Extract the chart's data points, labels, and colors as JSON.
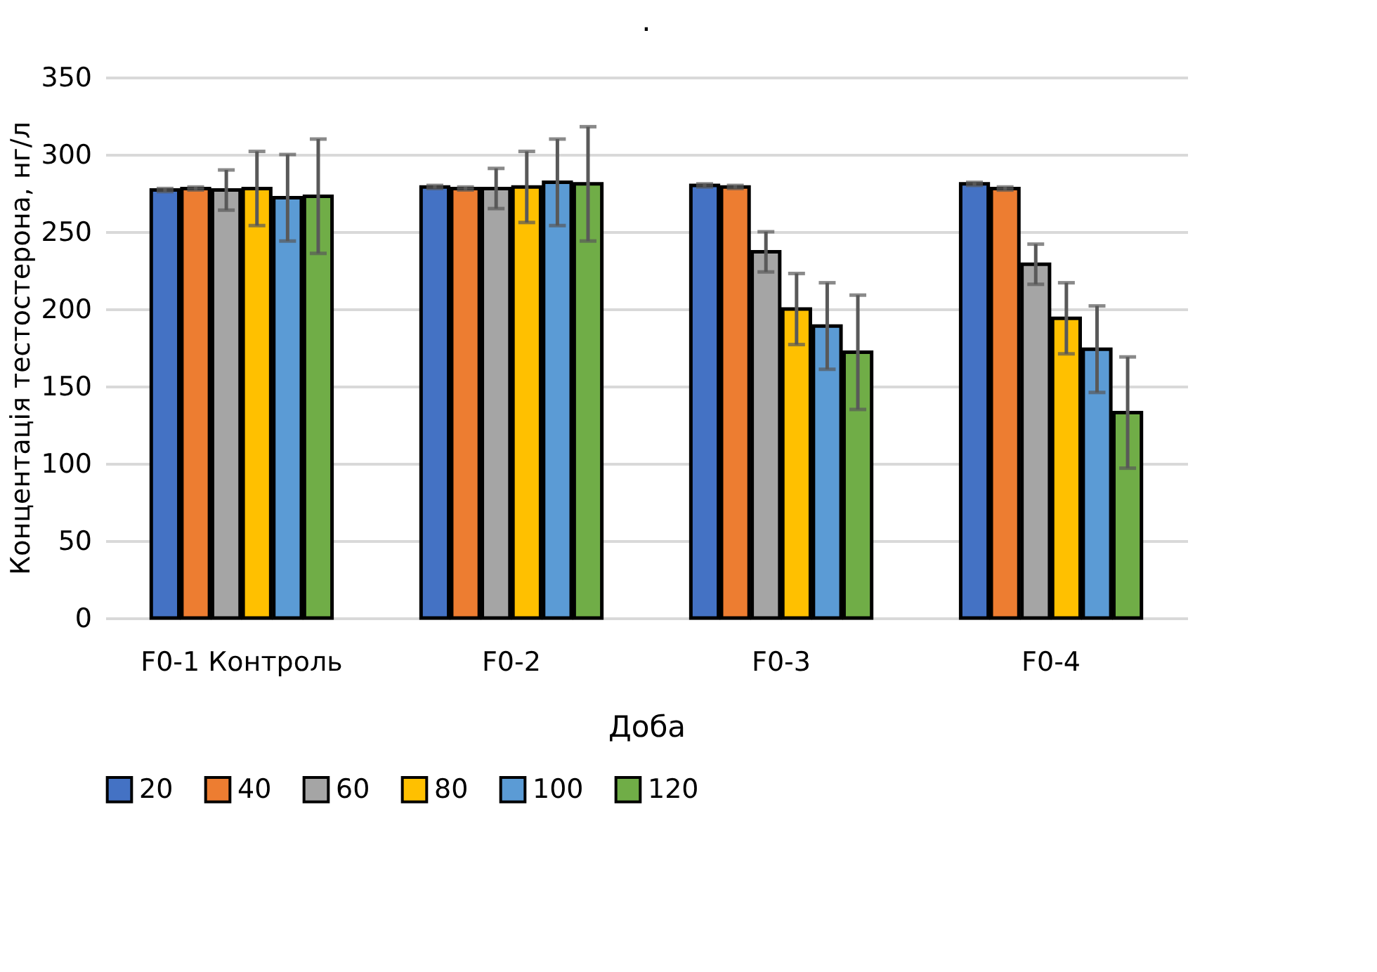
{
  "chart_data": {
    "type": "bar",
    "title": ".",
    "xlabel": "Доба",
    "ylabel": "Концентація тестостерона, нг/л",
    "categories": [
      "F0-1 Контроль",
      "F0-2",
      "F0-3",
      "F0-4"
    ],
    "series": [
      {
        "name": "20",
        "color": "#4472c4",
        "values": [
          277,
          279,
          280,
          281
        ],
        "errors": [
          1,
          1,
          1,
          1
        ]
      },
      {
        "name": "40",
        "color": "#ed7d31",
        "values": [
          278,
          278,
          279,
          278
        ],
        "errors": [
          1,
          1,
          1,
          1
        ]
      },
      {
        "name": "60",
        "color": "#a5a5a5",
        "values": [
          277,
          278,
          237,
          229
        ],
        "errors": [
          13,
          13,
          13,
          13
        ]
      },
      {
        "name": "80",
        "color": "#ffc000",
        "values": [
          278,
          279,
          200,
          194
        ],
        "errors": [
          24,
          23,
          23,
          23
        ]
      },
      {
        "name": "100",
        "color": "#5b9bd5",
        "values": [
          272,
          282,
          189,
          174
        ],
        "errors": [
          28,
          28,
          28,
          28
        ]
      },
      {
        "name": "120",
        "color": "#70ad47",
        "values": [
          273,
          281,
          172,
          133
        ],
        "errors": [
          37,
          37,
          37,
          36
        ]
      }
    ],
    "ylim": [
      0,
      350
    ],
    "yticks": [
      0,
      50,
      100,
      150,
      200,
      250,
      300,
      350
    ],
    "grid": "y",
    "legend": "bottom"
  }
}
